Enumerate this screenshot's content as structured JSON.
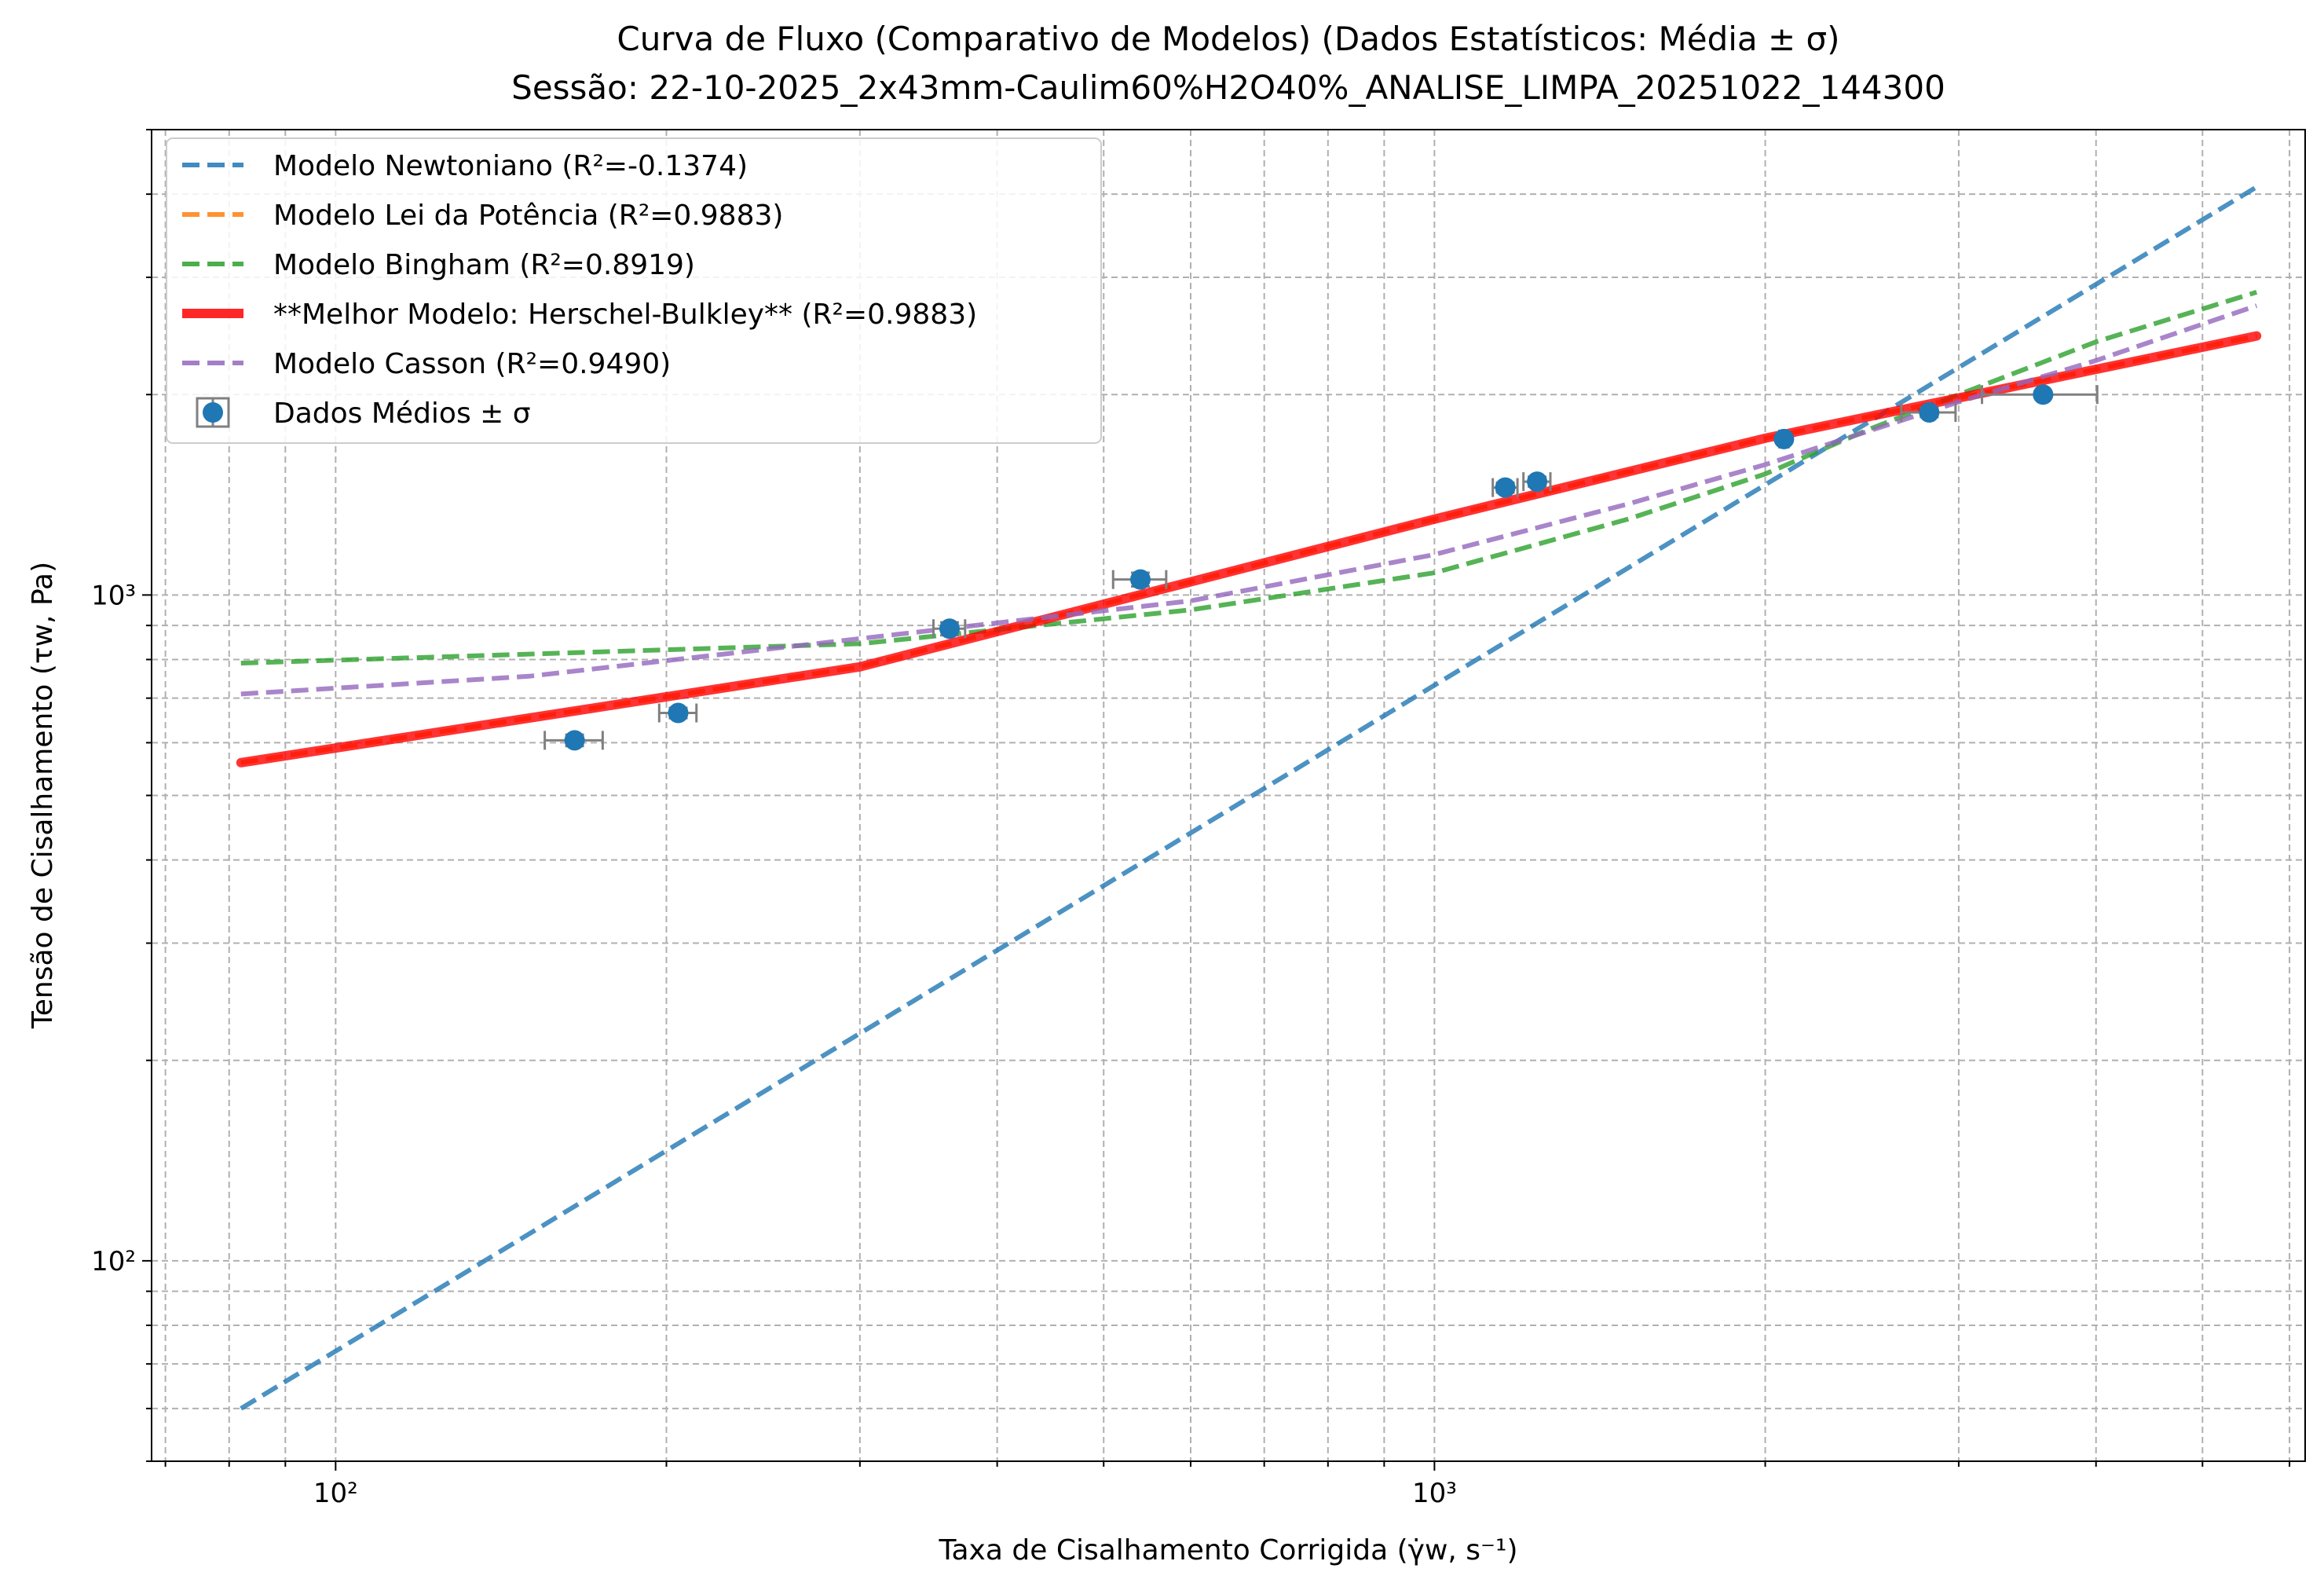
{
  "chart_data": {
    "type": "line",
    "title": "Curva de Fluxo (Comparativo de Modelos) (Dados Estatísticos: Média ± σ)",
    "subtitle": "Sessão: 22-10-2025_2x43mm-Caulim60%H2O40%_ANALISE_LIMPA_20251022_144300",
    "xlabel": "Taxa de Cisalhamento Corrigida (γ̇w, s⁻¹)",
    "ylabel": "Tensão de Cisalhamento (τw, Pa)",
    "x_scale": "log",
    "y_scale": "log",
    "xlim": [
      68,
      6200
    ],
    "ylim": [
      50,
      5000
    ],
    "x_ticks": [
      {
        "value": 100,
        "label": "10²"
      },
      {
        "value": 1000,
        "label": "10³"
      }
    ],
    "y_ticks": [
      {
        "value": 100,
        "label": "10²"
      },
      {
        "value": 1000,
        "label": "10³"
      }
    ],
    "grid": true,
    "legend_position": "upper-left",
    "series": [
      {
        "name": "Modelo Newtoniano (R²=-0.1374)",
        "color": "#1f77b4",
        "style": "dashed",
        "width": 6,
        "x": [
          82,
          5600
        ],
        "y": [
          60,
          4100
        ]
      },
      {
        "name": "Modelo Lei da Potência (R²=0.9883)",
        "color": "#ff7f0e",
        "style": "dashed",
        "width": 6,
        "x": [
          82,
          300,
          1000,
          2000,
          5600
        ],
        "y": [
          560,
          780,
          1300,
          1720,
          2450
        ]
      },
      {
        "name": "Modelo Bingham (R²=0.8919)",
        "color": "#2ca02c",
        "style": "dashed",
        "width": 6,
        "x": [
          82,
          300,
          600,
          1000,
          1500,
          2000,
          2500,
          3000,
          4000,
          5600
        ],
        "y": [
          790,
          845,
          950,
          1080,
          1300,
          1520,
          1780,
          2000,
          2400,
          2850
        ]
      },
      {
        "name": "**Melhor Modelo: Herschel-Bulkley** (R²=0.9883)",
        "color": "#ff0000",
        "style": "solid",
        "width": 12,
        "x": [
          82,
          300,
          1000,
          2000,
          5600
        ],
        "y": [
          560,
          780,
          1300,
          1720,
          2450
        ]
      },
      {
        "name": "Modelo Casson (R²=0.9490)",
        "color": "#9467bd",
        "style": "dashed",
        "width": 6,
        "x": [
          82,
          150,
          300,
          600,
          1000,
          1500,
          2000,
          3000,
          4000,
          5600
        ],
        "y": [
          710,
          755,
          860,
          980,
          1150,
          1370,
          1570,
          1950,
          2250,
          2720
        ]
      }
    ],
    "points": {
      "name": "Dados Médios ± σ",
      "color": "#1f77b4",
      "error_color": "#808080",
      "data": [
        {
          "x": 165,
          "y": 605,
          "xerr": 10,
          "yerr": 12
        },
        {
          "x": 205,
          "y": 665,
          "xerr": 8,
          "yerr": 12
        },
        {
          "x": 362,
          "y": 890,
          "xerr": 12,
          "yerr": 20
        },
        {
          "x": 540,
          "y": 1055,
          "xerr": 30,
          "yerr": 25
        },
        {
          "x": 1160,
          "y": 1450,
          "xerr": 30,
          "yerr": 25
        },
        {
          "x": 1240,
          "y": 1480,
          "xerr": 35,
          "yerr": 25
        },
        {
          "x": 2080,
          "y": 1715,
          "xerr": 20,
          "yerr": 15
        },
        {
          "x": 2820,
          "y": 1880,
          "xerr": 160,
          "yerr": 30
        },
        {
          "x": 3580,
          "y": 2000,
          "xerr": 430,
          "yerr": 20
        }
      ]
    }
  }
}
